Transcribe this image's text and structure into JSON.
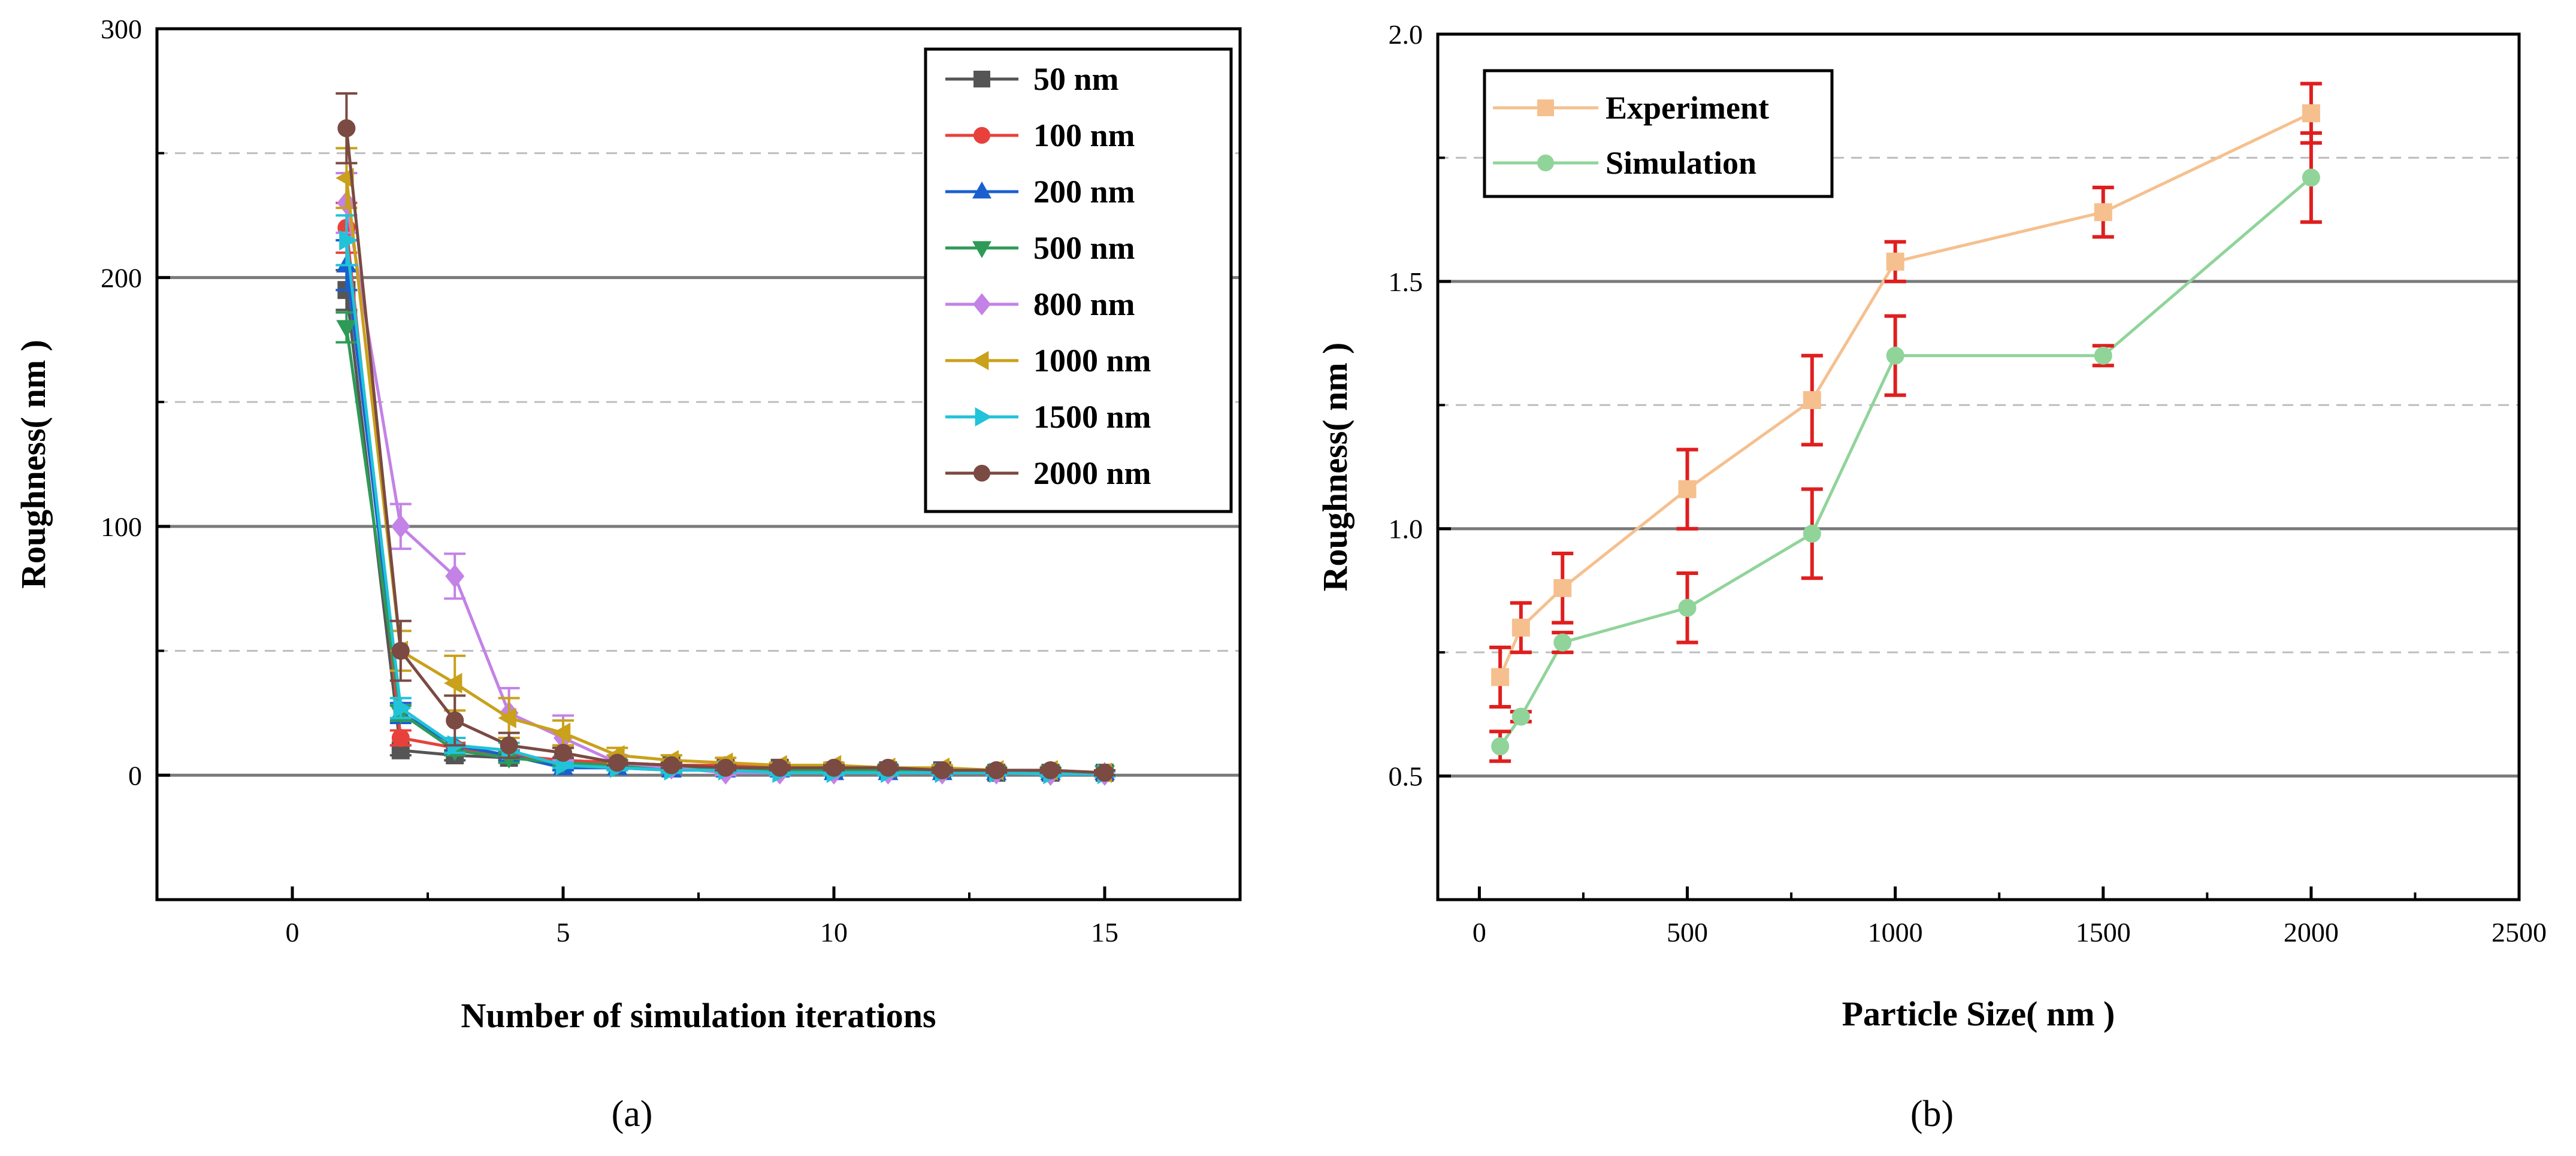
{
  "chart_data": [
    {
      "type": "line",
      "caption": "(a)",
      "xlabel": "Number of simulation iterations",
      "ylabel": "Roughness( nm )",
      "xlim": [
        -2.5,
        17.5
      ],
      "ylim": [
        -50,
        300
      ],
      "xticks": [
        0,
        5,
        10,
        15
      ],
      "yticks": [
        0,
        100,
        200,
        300
      ],
      "grid_major": [
        0,
        100,
        200
      ],
      "grid_minor": [
        50,
        150,
        250
      ],
      "legend_position": "top-right",
      "series": [
        {
          "name": "50 nm",
          "color": "#555555",
          "marker": "square",
          "x": [
            1,
            2,
            3,
            4,
            5,
            6,
            7,
            8,
            9,
            10,
            11,
            12,
            13,
            14,
            15
          ],
          "y": [
            195,
            10,
            8,
            7,
            6,
            5,
            4,
            3,
            3,
            2,
            2,
            2,
            1,
            1,
            1
          ],
          "err": [
            8,
            2,
            2,
            1,
            1,
            1,
            1,
            1,
            1,
            1,
            1,
            1,
            1,
            1,
            1
          ]
        },
        {
          "name": "100 nm",
          "color": "#e8413c",
          "marker": "circle",
          "x": [
            1,
            2,
            3,
            4,
            5,
            6,
            7,
            8,
            9,
            10,
            11,
            12,
            13,
            14,
            15
          ],
          "y": [
            220,
            15,
            11,
            8,
            6,
            5,
            4,
            4,
            3,
            3,
            2,
            2,
            2,
            1,
            1
          ],
          "err": [
            10,
            3,
            2,
            2,
            1,
            1,
            1,
            1,
            1,
            1,
            1,
            1,
            1,
            1,
            1
          ]
        },
        {
          "name": "200 nm",
          "color": "#1a5fd0",
          "marker": "triangle-up",
          "x": [
            1,
            2,
            3,
            4,
            5,
            6,
            7,
            8,
            9,
            10,
            11,
            12,
            13,
            14,
            15
          ],
          "y": [
            205,
            25,
            12,
            8,
            3,
            3,
            2,
            2,
            2,
            1,
            1,
            1,
            1,
            1,
            1
          ],
          "err": [
            10,
            4,
            3,
            2,
            1,
            1,
            1,
            1,
            1,
            1,
            1,
            1,
            1,
            1,
            1
          ]
        },
        {
          "name": "500 nm",
          "color": "#2e9a57",
          "marker": "triangle-down",
          "x": [
            1,
            2,
            3,
            4,
            5,
            6,
            7,
            8,
            9,
            10,
            11,
            12,
            13,
            14,
            15
          ],
          "y": [
            180,
            25,
            10,
            7,
            5,
            4,
            3,
            2,
            2,
            2,
            2,
            1,
            1,
            1,
            1
          ],
          "err": [
            6,
            3,
            2,
            2,
            1,
            1,
            1,
            1,
            1,
            1,
            1,
            1,
            1,
            1,
            1
          ]
        },
        {
          "name": "800 nm",
          "color": "#c382e6",
          "marker": "diamond",
          "x": [
            1,
            2,
            3,
            4,
            5,
            6,
            7,
            8,
            9,
            10,
            11,
            12,
            13,
            14,
            15
          ],
          "y": [
            230,
            100,
            80,
            25,
            15,
            5,
            3,
            1,
            1,
            1,
            1,
            1,
            1,
            0.5,
            0.5
          ],
          "err": [
            12,
            9,
            9,
            10,
            9,
            3,
            2,
            1,
            1,
            1,
            1,
            1,
            1,
            1,
            1
          ]
        },
        {
          "name": "1000 nm",
          "color": "#c9a11a",
          "marker": "triangle-left",
          "x": [
            1,
            2,
            3,
            4,
            5,
            6,
            7,
            8,
            9,
            10,
            11,
            12,
            13,
            14,
            15
          ],
          "y": [
            240,
            50,
            37,
            23,
            17,
            8,
            6,
            5,
            4,
            4,
            3,
            3,
            2,
            2,
            1
          ],
          "err": [
            12,
            8,
            11,
            8,
            5,
            3,
            2,
            2,
            1,
            1,
            1,
            1,
            1,
            1,
            1
          ]
        },
        {
          "name": "1500 nm",
          "color": "#21c3d8",
          "marker": "triangle-right",
          "x": [
            1,
            2,
            3,
            4,
            5,
            6,
            7,
            8,
            9,
            10,
            11,
            12,
            13,
            14,
            15
          ],
          "y": [
            215,
            27,
            12,
            10,
            4,
            3,
            2,
            2,
            1,
            1,
            1,
            1,
            1,
            0.5,
            0.5
          ],
          "err": [
            10,
            4,
            3,
            3,
            1,
            1,
            1,
            1,
            1,
            1,
            1,
            1,
            1,
            1,
            1
          ]
        },
        {
          "name": "2000 nm",
          "color": "#7b4a42",
          "marker": "circle",
          "x": [
            1,
            2,
            3,
            4,
            5,
            6,
            7,
            8,
            9,
            10,
            11,
            12,
            13,
            14,
            15
          ],
          "y": [
            260,
            50,
            22,
            12,
            9,
            5,
            4,
            3,
            3,
            3,
            3,
            2,
            2,
            2,
            1
          ],
          "err": [
            14,
            12,
            10,
            5,
            2,
            1,
            1,
            1,
            1,
            1,
            1,
            1,
            1,
            1,
            1
          ]
        }
      ]
    },
    {
      "type": "line",
      "caption": "(b)",
      "xlabel": "Particle Size( nm )",
      "ylabel": "Roughness( nm )",
      "xlim": [
        -100,
        2500
      ],
      "ylim": [
        0.25,
        2.0
      ],
      "xticks": [
        0,
        500,
        1000,
        1500,
        2000,
        2500
      ],
      "yticks": [
        0.5,
        1.0,
        1.5,
        2.0
      ],
      "ytick_labels": [
        "0.5",
        "1.0",
        "1.5",
        "2.0"
      ],
      "grid_major": [
        0.5,
        1.0,
        1.5
      ],
      "grid_minor": [
        0.75,
        1.25,
        1.75
      ],
      "legend_position": "top-left",
      "error_color": "#e01e1e",
      "series": [
        {
          "name": "Experiment",
          "color": "#f5c08e",
          "marker": "square",
          "x": [
            50,
            100,
            200,
            500,
            800,
            1000,
            1500,
            2000
          ],
          "y": [
            0.7,
            0.8,
            0.88,
            1.08,
            1.26,
            1.54,
            1.64,
            1.84
          ],
          "err": [
            0.06,
            0.05,
            0.07,
            0.08,
            0.09,
            0.04,
            0.05,
            0.06
          ]
        },
        {
          "name": "Simulation",
          "color": "#90d49a",
          "marker": "circle",
          "x": [
            50,
            100,
            200,
            500,
            800,
            1000,
            1500,
            2000
          ],
          "y": [
            0.56,
            0.62,
            0.77,
            0.84,
            0.99,
            1.35,
            1.35,
            1.71
          ],
          "err": [
            0.03,
            0.01,
            0.02,
            0.07,
            0.09,
            0.08,
            0.02,
            0.09
          ]
        }
      ]
    }
  ]
}
